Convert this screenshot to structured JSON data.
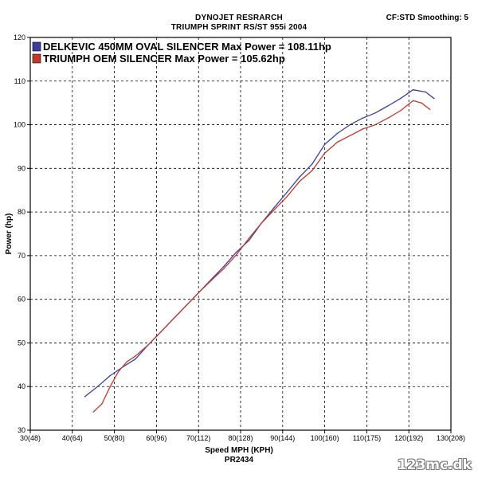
{
  "header": {
    "title_line1": "DYNOJET RESRARCH",
    "title_line2": "TRIUMPH SPRINT RS/ST 955i 2004",
    "cf_info": "CF:STD Smoothing: 5"
  },
  "footer": {
    "run_id": "PR2434",
    "watermark": "123mc.dk"
  },
  "colors": {
    "series_blue": "#3a3f9e",
    "series_red": "#c0392b",
    "grid": "#000000",
    "background": "#ffffff"
  },
  "chart_data": {
    "type": "line",
    "title": "DYNOJET RESRARCH",
    "subtitle": "TRIUMPH SPRINT RS/ST 955i 2004",
    "xlabel": "Speed MPH (KPH)",
    "ylabel": "Power (hp)",
    "xlim": [
      30,
      130
    ],
    "ylim": [
      30,
      120
    ],
    "x_ticks": [
      30,
      40,
      50,
      60,
      70,
      80,
      90,
      100,
      110,
      120,
      130
    ],
    "x_tick_labels": [
      "30(48)",
      "40(64)",
      "50(80)",
      "60(96)",
      "70(112)",
      "80(128)",
      "90(144)",
      "100(160)",
      "110(175)",
      "120(192)",
      "130(208)"
    ],
    "y_ticks": [
      30,
      40,
      50,
      60,
      70,
      80,
      90,
      100,
      110,
      120
    ],
    "y_tick_labels": [
      "30",
      "40",
      "50",
      "60",
      "70",
      "80",
      "90",
      "100",
      "110",
      "120"
    ],
    "grid": true,
    "legend_position": "top-left",
    "series": [
      {
        "name": "DELKEVIC 450MM OVAL SILENCER Max Power = 108.11hp",
        "color": "#3a3f9e",
        "points": [
          [
            43,
            37.7
          ],
          [
            46,
            40
          ],
          [
            49,
            42.5
          ],
          [
            52,
            44.5
          ],
          [
            55,
            46.3
          ],
          [
            58,
            49.5
          ],
          [
            61,
            52.5
          ],
          [
            64,
            55.5
          ],
          [
            67,
            58.5
          ],
          [
            70,
            61.5
          ],
          [
            73,
            64.5
          ],
          [
            76,
            67.5
          ],
          [
            79,
            70.8
          ],
          [
            82,
            73.5
          ],
          [
            85,
            77.5
          ],
          [
            88,
            81
          ],
          [
            91,
            84.5
          ],
          [
            94,
            88
          ],
          [
            97,
            91
          ],
          [
            100,
            95.5
          ],
          [
            103,
            98
          ],
          [
            106,
            100
          ],
          [
            109,
            101.5
          ],
          [
            112,
            102.7
          ],
          [
            115,
            104.3
          ],
          [
            118,
            106
          ],
          [
            121,
            108
          ],
          [
            124,
            107.5
          ],
          [
            126,
            106
          ]
        ]
      },
      {
        "name": "TRIUMPH OEM SILENCER Max Power = 105.62hp",
        "color": "#c0392b",
        "points": [
          [
            45,
            34.2
          ],
          [
            47,
            36
          ],
          [
            49,
            40
          ],
          [
            51,
            43.5
          ],
          [
            53,
            45.7
          ],
          [
            55,
            47
          ],
          [
            58,
            49.5
          ],
          [
            61,
            52.5
          ],
          [
            64,
            55.5
          ],
          [
            67,
            58.5
          ],
          [
            70,
            61.5
          ],
          [
            73,
            64.3
          ],
          [
            76,
            67
          ],
          [
            79,
            70.2
          ],
          [
            82,
            74
          ],
          [
            85,
            77.5
          ],
          [
            88,
            80.5
          ],
          [
            91,
            83.5
          ],
          [
            94,
            87
          ],
          [
            97,
            89.5
          ],
          [
            100,
            93.5
          ],
          [
            103,
            96
          ],
          [
            106,
            97.5
          ],
          [
            109,
            99
          ],
          [
            112,
            100
          ],
          [
            115,
            101.5
          ],
          [
            118,
            103.2
          ],
          [
            121,
            105.5
          ],
          [
            123,
            105
          ],
          [
            125,
            103.5
          ]
        ]
      }
    ]
  }
}
